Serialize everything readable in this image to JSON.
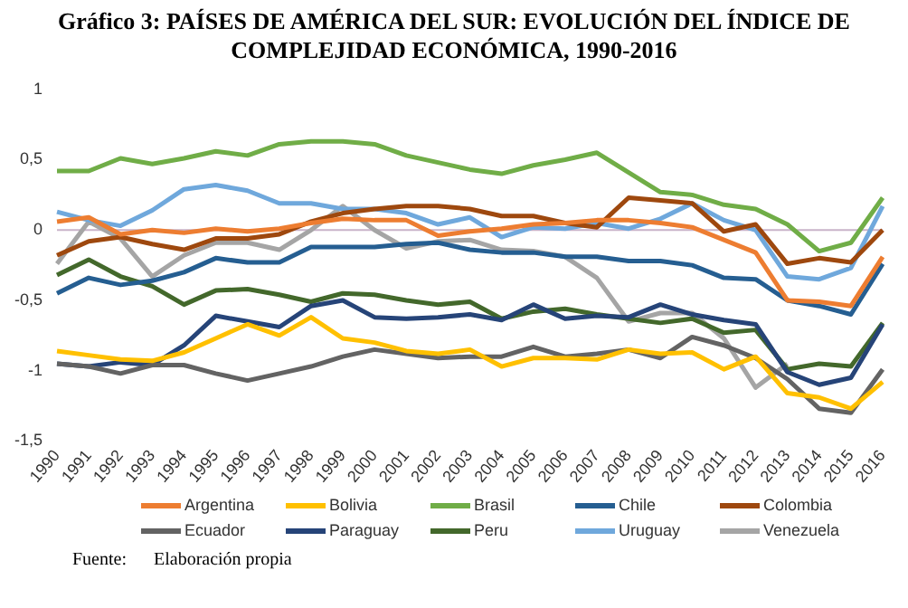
{
  "chart_data": {
    "type": "line",
    "title": "Gráfico 3: PAÍSES DE AMÉRICA DEL SUR: EVOLUCIÓN DEL ÍNDICE DE COMPLEJIDAD ECONÓMICA, 1990-2016",
    "categories": [
      "1990",
      "1991",
      "1992",
      "1993",
      "1994",
      "1995",
      "1996",
      "1997",
      "1998",
      "1999",
      "2000",
      "2001",
      "2002",
      "2003",
      "2004",
      "2005",
      "2006",
      "2007",
      "2008",
      "2009",
      "2010",
      "2011",
      "2012",
      "2013",
      "2014",
      "2015",
      "2016"
    ],
    "series": [
      {
        "name": "Argentina",
        "color": "#ed7d31",
        "values": [
          0.06,
          0.09,
          -0.03,
          0.0,
          -0.02,
          0.01,
          -0.01,
          0.01,
          0.05,
          0.08,
          0.07,
          0.07,
          -0.04,
          -0.01,
          0.01,
          0.04,
          0.05,
          0.07,
          0.07,
          0.05,
          0.02,
          -0.07,
          -0.16,
          -0.5,
          -0.51,
          -0.54,
          -0.19
        ]
      },
      {
        "name": "Bolivia",
        "color": "#ffc000",
        "values": [
          -0.86,
          -0.89,
          -0.92,
          -0.93,
          -0.87,
          -0.77,
          -0.67,
          -0.75,
          -0.62,
          -0.77,
          -0.8,
          -0.86,
          -0.88,
          -0.85,
          -0.97,
          -0.91,
          -0.91,
          -0.92,
          -0.85,
          -0.88,
          -0.87,
          -0.99,
          -0.9,
          -1.16,
          -1.19,
          -1.27,
          -1.08
        ]
      },
      {
        "name": "Brasil",
        "color": "#70ad47",
        "values": [
          0.42,
          0.42,
          0.51,
          0.47,
          0.51,
          0.56,
          0.53,
          0.61,
          0.63,
          0.63,
          0.61,
          0.53,
          0.48,
          0.43,
          0.4,
          0.46,
          0.5,
          0.55,
          0.41,
          0.27,
          0.25,
          0.18,
          0.15,
          0.04,
          -0.15,
          -0.09,
          0.23
        ]
      },
      {
        "name": "Chile",
        "color": "#255e91",
        "values": [
          -0.45,
          -0.34,
          -0.39,
          -0.36,
          -0.3,
          -0.2,
          -0.23,
          -0.23,
          -0.12,
          -0.12,
          -0.12,
          -0.1,
          -0.09,
          -0.14,
          -0.16,
          -0.16,
          -0.19,
          -0.19,
          -0.22,
          -0.22,
          -0.25,
          -0.34,
          -0.35,
          -0.5,
          -0.54,
          -0.6,
          -0.24
        ]
      },
      {
        "name": "Colombia",
        "color": "#9e480e",
        "values": [
          -0.18,
          -0.08,
          -0.05,
          -0.1,
          -0.14,
          -0.06,
          -0.06,
          -0.03,
          0.06,
          0.12,
          0.15,
          0.17,
          0.17,
          0.15,
          0.1,
          0.1,
          0.05,
          0.02,
          0.23,
          0.21,
          0.19,
          -0.01,
          0.04,
          -0.24,
          -0.2,
          -0.23,
          0.0
        ]
      },
      {
        "name": "Ecuador",
        "color": "#636363",
        "values": [
          -0.95,
          -0.97,
          -1.02,
          -0.96,
          -0.96,
          -1.02,
          -1.07,
          -1.02,
          -0.97,
          -0.9,
          -0.85,
          -0.88,
          -0.91,
          -0.9,
          -0.9,
          -0.83,
          -0.9,
          -0.88,
          -0.85,
          -0.91,
          -0.76,
          -0.82,
          -0.91,
          -1.06,
          -1.27,
          -1.3,
          -0.99
        ]
      },
      {
        "name": "Paraguay",
        "color": "#264478",
        "values": [
          -0.95,
          -0.97,
          -0.94,
          -0.96,
          -0.82,
          -0.61,
          -0.65,
          -0.69,
          -0.54,
          -0.5,
          -0.62,
          -0.63,
          -0.62,
          -0.6,
          -0.64,
          -0.53,
          -0.63,
          -0.61,
          -0.62,
          -0.53,
          -0.6,
          -0.64,
          -0.67,
          -1.01,
          -1.1,
          -1.05,
          -0.67
        ]
      },
      {
        "name": "Peru",
        "color": "#43682b",
        "values": [
          -0.32,
          -0.21,
          -0.33,
          -0.4,
          -0.53,
          -0.43,
          -0.42,
          -0.46,
          -0.51,
          -0.45,
          -0.46,
          -0.5,
          -0.53,
          -0.51,
          -0.63,
          -0.58,
          -0.56,
          -0.6,
          -0.63,
          -0.66,
          -0.63,
          -0.73,
          -0.71,
          -0.99,
          -0.95,
          -0.97,
          -0.66
        ]
      },
      {
        "name": "Uruguay",
        "color": "#6fa8dc",
        "values": [
          0.13,
          0.07,
          0.03,
          0.14,
          0.29,
          0.32,
          0.28,
          0.19,
          0.19,
          0.15,
          0.15,
          0.12,
          0.04,
          0.09,
          -0.05,
          0.02,
          0.01,
          0.05,
          0.01,
          0.08,
          0.19,
          0.07,
          0.0,
          -0.33,
          -0.35,
          -0.27,
          0.17
        ]
      },
      {
        "name": "Venezuela",
        "color": "#a5a5a5",
        "values": [
          -0.24,
          0.06,
          -0.06,
          -0.33,
          -0.18,
          -0.09,
          -0.09,
          -0.14,
          0.0,
          0.17,
          0.0,
          -0.13,
          -0.08,
          -0.07,
          -0.14,
          -0.15,
          -0.19,
          -0.34,
          -0.65,
          -0.59,
          -0.59,
          -0.77,
          -1.12,
          -0.95,
          null,
          null,
          null
        ]
      }
    ],
    "ylim": [
      -1.5,
      1
    ],
    "yticks": [
      {
        "value": -1.5,
        "label": "-1,5"
      },
      -1,
      {
        "value": -0.5,
        "label": "-0,5"
      },
      0,
      {
        "value": 0.5,
        "label": "0,5"
      },
      1
    ],
    "ref_lines": [
      {
        "axis": "y",
        "value": 0,
        "color": "#c9b3c9"
      }
    ],
    "grid": false,
    "legend": "bottom",
    "marker": "none",
    "line_style": "solid",
    "annotations": [
      "Fuente:      Elaboración propia"
    ]
  }
}
